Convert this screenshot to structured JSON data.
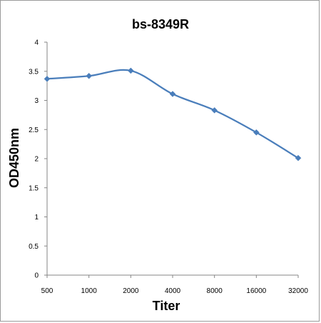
{
  "chart_data": {
    "type": "line",
    "title": "bs-8349R",
    "xlabel": "Titer",
    "ylabel": "OD450nm",
    "categories": [
      "500",
      "1000",
      "2000",
      "4000",
      "8000",
      "16000",
      "32000"
    ],
    "series": [
      {
        "values": [
          3.37,
          3.42,
          3.51,
          3.11,
          2.83,
          2.45,
          2.01
        ]
      }
    ],
    "ylim": [
      0,
      4
    ],
    "yticks": [
      "0",
      "0.5",
      "1",
      "1.5",
      "2",
      "2.5",
      "3",
      "3.5",
      "4"
    ],
    "grid": false,
    "legend": "none",
    "colors": {
      "line": "#4a7ebb",
      "marker": "#4a7ebb",
      "axis": "#868686"
    }
  }
}
